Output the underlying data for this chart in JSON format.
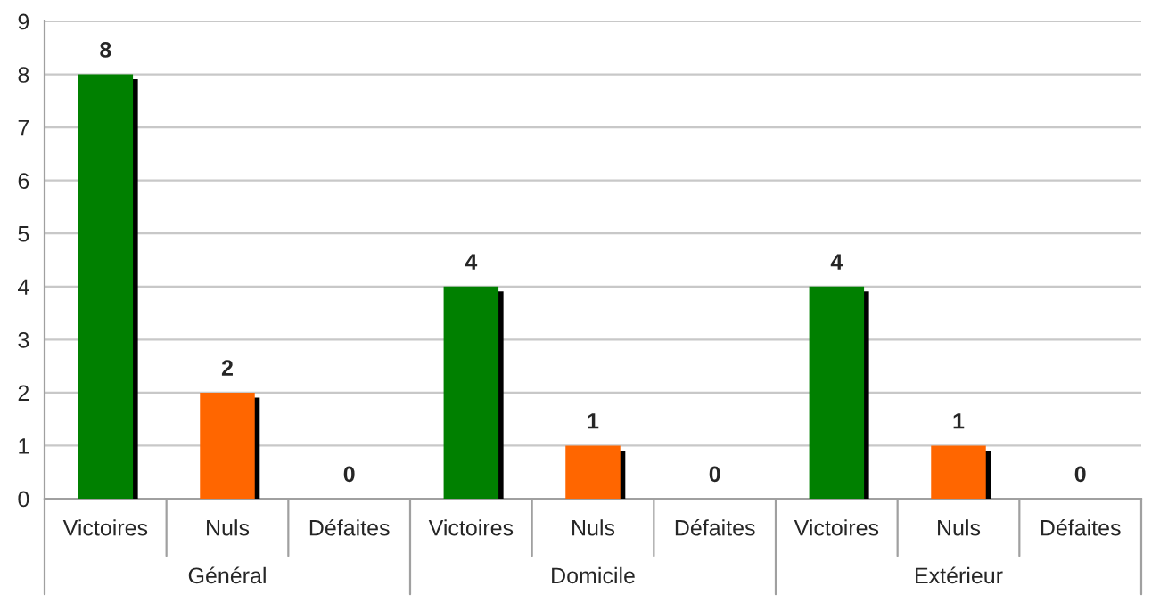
{
  "chart_data": {
    "type": "bar",
    "categories": [
      "Victoires",
      "Nuls",
      "Défaites",
      "Victoires",
      "Nuls",
      "Défaites",
      "Victoires",
      "Nuls",
      "Défaites"
    ],
    "values": [
      8,
      2,
      0,
      4,
      1,
      0,
      4,
      1,
      0
    ],
    "colors": [
      "#008000",
      "#ff6600",
      null,
      "#008000",
      "#ff6600",
      null,
      "#008000",
      "#ff6600",
      null
    ],
    "annotations": [
      "Général",
      "Domicile",
      "Extérieur"
    ],
    "ylim": [
      0,
      9
    ],
    "yticks": [
      0,
      1,
      2,
      3,
      4,
      5,
      6,
      7,
      8,
      9
    ],
    "grid": "y",
    "data_labels": true,
    "legend": false
  }
}
